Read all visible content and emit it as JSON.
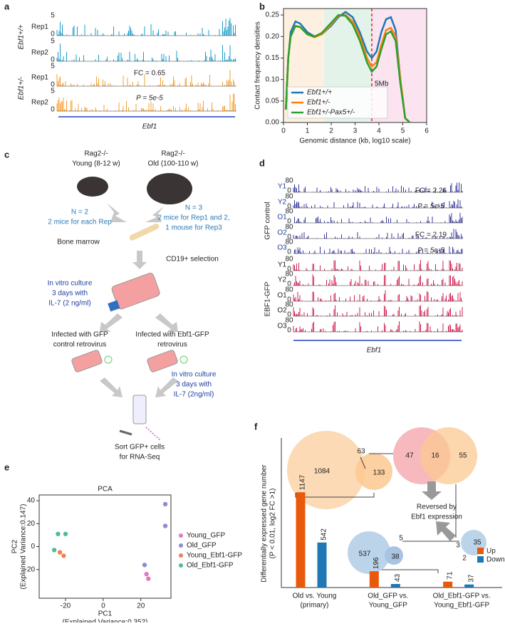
{
  "panel_labels": [
    "a",
    "b",
    "c",
    "d",
    "e",
    "f"
  ],
  "panel_a": {
    "genotypes": [
      "Ebf1+/+",
      "Ebf1+/-"
    ],
    "tracks": [
      "Rep1",
      "Rep2",
      "Rep1",
      "Rep2"
    ],
    "scale_max": "5",
    "scale_min": "0",
    "fc": "FC = 0.65",
    "p": "P = 5e-5",
    "gene": "Ebf1"
  },
  "panel_c": {
    "young": [
      "Rag2-/-",
      "Young (8-12 w)"
    ],
    "old": [
      "Rag2-/-",
      "Old (100-110 w)"
    ],
    "young_n": [
      "N = 2",
      "2 mice for each Rep"
    ],
    "old_n": [
      "N = 3",
      "2 mice for Rep1 and 2,",
      "1 mouse for Rep3"
    ],
    "bone": "Bone marrow",
    "selection": "CD19+ selection",
    "culture1": [
      "In vitro culture",
      "3 days with",
      "IL-7 (2 ng/ml)"
    ],
    "gfp": [
      "Infected with GFP",
      "control retrovirus"
    ],
    "ebf": [
      "Infected with Ebf1-GFP",
      "retrovirus"
    ],
    "culture2": [
      "In vitro culture",
      "3 days with",
      "IL-7 (2ng/ml)"
    ],
    "sort": [
      "Sort GFP+ cells",
      "for RNA-Seq"
    ]
  },
  "panel_d": {
    "groups": [
      "GFP control",
      "EBF1-GFP"
    ],
    "tracks": [
      "Y1",
      "Y2",
      "O1",
      "O2",
      "O3",
      "Y1",
      "Y2",
      "O1",
      "O2",
      "O3"
    ],
    "scale_max": "80",
    "scale_min": "0",
    "annotations": [
      "FC = 2.26",
      "P = 5e-5",
      "FC = 2.19",
      "P = 5e-5"
    ],
    "gene": "Ebf1"
  },
  "panel_f_venn": {
    "left": [
      1084,
      133,
      63
    ],
    "top": [
      47,
      16,
      55
    ],
    "note": [
      "Reversed by",
      "Ebf1 expression"
    ],
    "mid": [
      537,
      38,
      5
    ],
    "right": [
      35,
      3,
      2
    ]
  },
  "chart_data": [
    {
      "type": "line",
      "xlabel": "Genomic distance (kb, log10 scale)",
      "ylabel": "Contact frequency densities",
      "xlim": [
        0,
        6
      ],
      "ylim": [
        0,
        0.265
      ],
      "xticks": [
        0,
        1,
        2,
        3,
        4,
        5,
        6
      ],
      "yticks": [
        {
          "value": 0,
          "label": "0.00"
        },
        {
          "value": 0.05,
          "label": "0.05"
        },
        {
          "value": 0.1,
          "label": "0.10"
        },
        {
          "value": 0.15,
          "label": "0.15"
        },
        {
          "value": 0.2,
          "label": "0.20"
        },
        {
          "value": 0.25,
          "label": "0.25"
        }
      ],
      "regions": [
        {
          "range": [
            0,
            1.7
          ],
          "color": "#fdf0e0"
        },
        {
          "range": [
            1.7,
            3.7
          ],
          "color": "#e4f3ea"
        },
        {
          "range": [
            3.7,
            6
          ],
          "color": "#fbe4f0"
        }
      ],
      "vline": {
        "x": 3.7,
        "label": "5Mb",
        "color": "#d62728"
      },
      "legend": "lower left",
      "x": [
        0.1,
        0.2,
        0.3,
        0.5,
        0.7,
        1.0,
        1.3,
        1.6,
        2.0,
        2.3,
        2.6,
        2.9,
        3.2,
        3.5,
        3.7,
        3.9,
        4.1,
        4.3,
        4.5,
        4.7,
        4.9,
        5.1,
        5.3
      ],
      "series": [
        {
          "name": "Ebf1+/+",
          "color": "#1f77b4",
          "values": [
            0.03,
            0.15,
            0.21,
            0.235,
            0.23,
            0.21,
            0.2,
            0.205,
            0.225,
            0.245,
            0.257,
            0.245,
            0.21,
            0.165,
            0.15,
            0.165,
            0.21,
            0.24,
            0.245,
            0.215,
            0.1,
            0.01,
            0
          ]
        },
        {
          "name": "Ebf1+/-",
          "color": "#ff7f0e",
          "values": [
            0.03,
            0.15,
            0.2,
            0.225,
            0.222,
            0.205,
            0.198,
            0.205,
            0.228,
            0.248,
            0.25,
            0.235,
            0.2,
            0.15,
            0.13,
            0.14,
            0.18,
            0.215,
            0.22,
            0.2,
            0.1,
            0.01,
            0
          ]
        },
        {
          "name": "Ebf1+/-Pax5+/-",
          "color": "#2ca02c",
          "values": [
            0.03,
            0.15,
            0.2,
            0.224,
            0.222,
            0.205,
            0.2,
            0.208,
            0.232,
            0.25,
            0.248,
            0.228,
            0.19,
            0.14,
            0.118,
            0.13,
            0.17,
            0.205,
            0.212,
            0.19,
            0.09,
            0.01,
            0
          ]
        }
      ]
    },
    {
      "type": "scatter",
      "title": "PCA",
      "xlabel": [
        "PC1",
        "(Explained Variance:0.352)"
      ],
      "ylabel": [
        "PC2",
        "(Explained Variance:0.147)"
      ],
      "xlim": [
        -34,
        36
      ],
      "ylim": [
        -45,
        45
      ],
      "xticks": [
        -20,
        0,
        20
      ],
      "yticks": [
        -20,
        0,
        20,
        40
      ],
      "series": [
        {
          "name": "Young_GFP",
          "color": "#e377c2",
          "x": [
            23,
            24
          ],
          "values": [
            -24,
            -28
          ]
        },
        {
          "name": "Old_GFP",
          "color": "#8c8cd6",
          "x": [
            33,
            33,
            22
          ],
          "values": [
            37,
            18,
            -16
          ]
        },
        {
          "name": "Young_Ebf1-GFP",
          "color": "#f08050",
          "x": [
            -23,
            -21
          ],
          "values": [
            -5,
            -8
          ]
        },
        {
          "name": "Old_Ebf1-GFP",
          "color": "#4dbf8f",
          "x": [
            -24,
            -20,
            -26
          ],
          "values": [
            11,
            11,
            -3
          ]
        }
      ]
    },
    {
      "type": "bar",
      "ylabel": [
        "Differentially expressed gene number",
        "(P < 0.01, log2 FC >1)"
      ],
      "ylim": [
        0,
        1200
      ],
      "categories": [
        [
          "Old vs. Young",
          "(primary)"
        ],
        [
          "Old_GFP vs.",
          "Young_GFP"
        ],
        [
          "Old_Ebf1-GFP vs.",
          "Young_Ebf1-GFP"
        ]
      ],
      "series": [
        {
          "name": "Up",
          "color": "#e8590c",
          "values": [
            1147,
            196,
            71
          ]
        },
        {
          "name": "Down",
          "color": "#1f77b4",
          "values": [
            542,
            43,
            37
          ]
        }
      ]
    }
  ]
}
